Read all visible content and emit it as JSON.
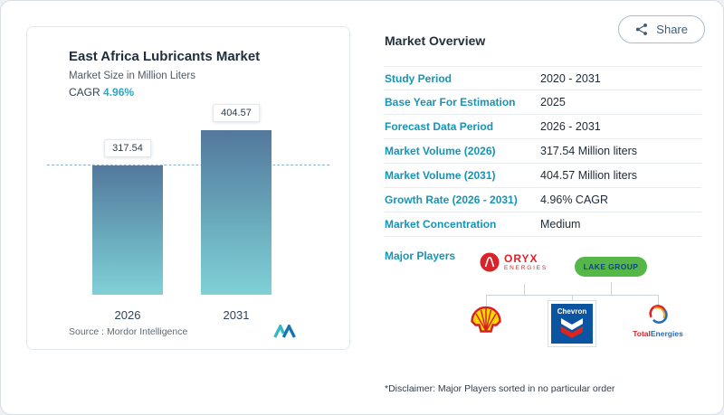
{
  "header": {
    "share_label": "Share"
  },
  "chart_card": {
    "title": "East Africa Lubricants Market",
    "subtitle": "Market Size in Million Liters",
    "cagr_label": "CAGR",
    "cagr_value": "4.96%",
    "source_label": "Source :",
    "source_brand": "Mordor Intelligence"
  },
  "chart_data": {
    "type": "bar",
    "title": "East Africa Lubricants Market",
    "ylabel": "Market Size in Million Liters",
    "categories": [
      "2026",
      "2031"
    ],
    "values": [
      317.54,
      404.57
    ],
    "value_labels": [
      "317.54",
      "404.57"
    ],
    "ylim": [
      0,
      450
    ],
    "reference_line": 317.54,
    "grid": false,
    "legend": false,
    "bar_gradient_top": "#53789c",
    "bar_gradient_bottom": "#80d0d7"
  },
  "overview": {
    "title": "Market Overview",
    "rows": [
      {
        "label": "Study Period",
        "value": "2020 - 2031"
      },
      {
        "label": "Base Year For Estimation",
        "value": "2025"
      },
      {
        "label": "Forecast Data Period",
        "value": "2026 - 2031"
      },
      {
        "label": "Market Volume (2026)",
        "value": "317.54 Million liters"
      },
      {
        "label": "Market Volume (2031)",
        "value": "404.57 Million liters"
      },
      {
        "label": "Growth Rate (2026 - 2031)",
        "value": "4.96% CAGR"
      },
      {
        "label": "Market Concentration",
        "value": "Medium"
      }
    ],
    "major_players_label": "Major Players",
    "players": {
      "oryx": {
        "line1": "ORYX",
        "line2": "ENERGIES"
      },
      "lake": {
        "label": "LAKE GROUP"
      },
      "chevron": {
        "label": "Chevron"
      },
      "total": {
        "part1": "Total",
        "part2": "Energies"
      }
    },
    "player_names": [
      "Oryx Energies",
      "Lake Group",
      "Shell",
      "Chevron",
      "TotalEnergies"
    ],
    "disclaimer": "*Disclaimer: Major Players sorted in no particular order"
  },
  "colors": {
    "accent_teal": "#1793b4",
    "cagr_teal": "#2da8c0",
    "dashed_reference": "#8fb4cd"
  }
}
